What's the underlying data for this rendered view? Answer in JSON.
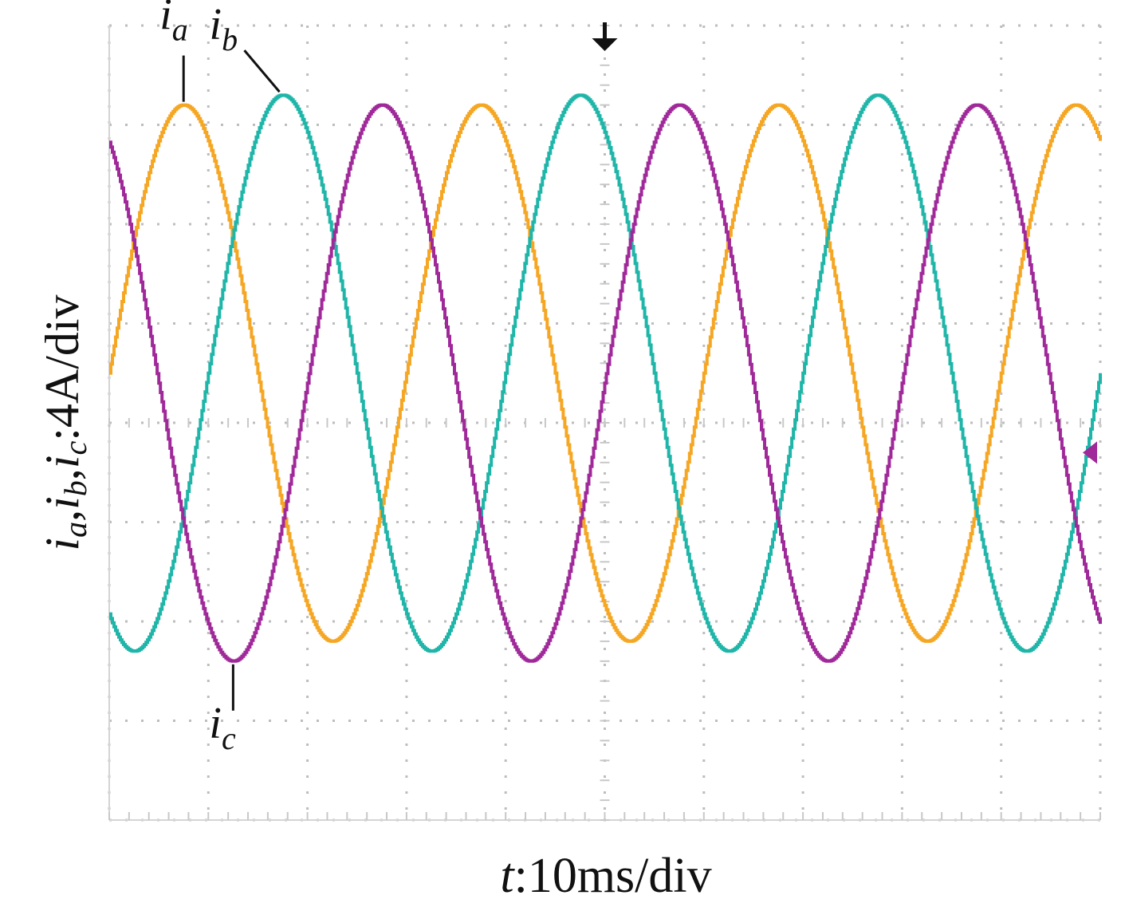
{
  "chart_data": {
    "type": "line",
    "xlabel": {
      "var": "t",
      "text": ":10ms/div"
    },
    "ylabel": {
      "vars": [
        "i",
        "a",
        ",",
        "i",
        "b",
        ",",
        "i",
        "c"
      ],
      "text": ":4A/div"
    },
    "x_unit_per_div": "10ms",
    "y_unit_per_div": "4A",
    "xlim_div": [
      0,
      10
    ],
    "ylim_div": [
      -4,
      4
    ],
    "grid": true,
    "grid_divisions": {
      "x": 10,
      "y": 8
    },
    "series": [
      {
        "name": "ia",
        "label_main": "i",
        "label_sub": "a",
        "color": "#F5A623",
        "amplitude_div": 2.7,
        "offset_div": 0.5,
        "period_div": 3.0,
        "phase_deg": 120
      },
      {
        "name": "ib",
        "label_main": "i",
        "label_sub": "b",
        "color": "#1FB5A8",
        "amplitude_div": 2.8,
        "offset_div": 0.5,
        "period_div": 3.0,
        "phase_deg": 0
      },
      {
        "name": "ic",
        "label_main": "i",
        "label_sub": "c",
        "color": "#A0299A",
        "amplitude_div": 2.8,
        "offset_div": 0.4,
        "period_div": 3.0,
        "phase_deg": -120
      }
    ],
    "ib_peak_x_div": 1.75,
    "markers": {
      "trigger": "top",
      "level": "right"
    }
  }
}
